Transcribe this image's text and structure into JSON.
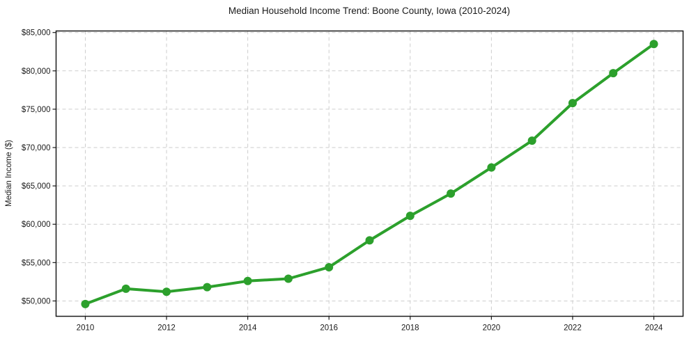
{
  "title": "Median Household Income Trend: Boone County, Iowa (2010-2024)",
  "chart_data": {
    "type": "line",
    "title": "Median Household Income Trend: Boone County, Iowa (2010-2024)",
    "xlabel": "",
    "ylabel": "Median Income ($)",
    "x": [
      2010,
      2011,
      2012,
      2013,
      2014,
      2015,
      2016,
      2017,
      2018,
      2019,
      2020,
      2021,
      2022,
      2023,
      2024
    ],
    "series": [
      {
        "name": "Median Household Income",
        "values": [
          49600,
          51600,
          51200,
          51800,
          52600,
          52900,
          54400,
          57900,
          61100,
          64000,
          67400,
          70900,
          75800,
          79700,
          83500
        ]
      }
    ],
    "xlim": [
      2009.28,
      2024.72
    ],
    "ylim": [
      48000,
      85200
    ],
    "x_ticks": [
      2010,
      2012,
      2014,
      2016,
      2018,
      2020,
      2022,
      2024
    ],
    "y_ticks": [
      50000,
      55000,
      60000,
      65000,
      70000,
      75000,
      80000,
      85000
    ],
    "y_tick_prefix": "$",
    "grid": true,
    "grid_style": "dashed",
    "legend": false,
    "line_color": "#2ca02c",
    "marker": "circle",
    "marker_radius": 6,
    "line_width": 4,
    "grid_color": "#cdcdcd",
    "spine_color": "#1a1a1a",
    "text_color": "#1a1a1a",
    "background_color": "#ffffff"
  }
}
